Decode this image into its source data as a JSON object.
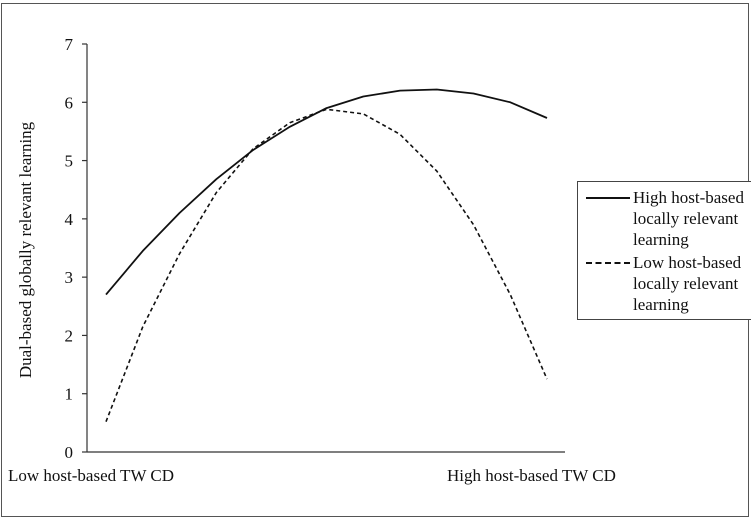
{
  "chart_data": {
    "type": "line",
    "title": "",
    "ylabel": "Dual-based globally relevant learning",
    "xlabel_left": "Low host-based TW CD",
    "xlabel_right": "High host-based TW CD",
    "ylim": [
      0,
      7
    ],
    "yticks": [
      "0",
      "1",
      "2",
      "3",
      "4",
      "5",
      "6",
      "7"
    ],
    "x": [
      0,
      1,
      2,
      3,
      4,
      5,
      6,
      7,
      8,
      9,
      10,
      11,
      12
    ],
    "series": [
      {
        "name": "High host-based locally relevant learning",
        "style": "solid",
        "values": [
          2.7,
          3.45,
          4.1,
          4.68,
          5.18,
          5.58,
          5.9,
          6.1,
          6.2,
          6.22,
          6.15,
          6.0,
          5.73
        ]
      },
      {
        "name": "Low host-based locally relevant learning",
        "style": "dashed",
        "values": [
          0.52,
          2.15,
          3.4,
          4.45,
          5.2,
          5.65,
          5.88,
          5.8,
          5.45,
          4.82,
          3.9,
          2.7,
          1.25
        ]
      }
    ],
    "legend_position": "right",
    "grid": false
  },
  "colors": {
    "line": "#111111",
    "axis": "#333333"
  }
}
